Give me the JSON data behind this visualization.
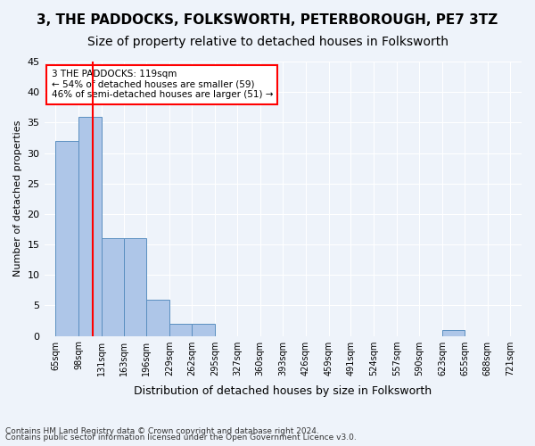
{
  "title1": "3, THE PADDOCKS, FOLKSWORTH, PETERBOROUGH, PE7 3TZ",
  "title2": "Size of property relative to detached houses in Folksworth",
  "xlabel": "Distribution of detached houses by size in Folksworth",
  "ylabel": "Number of detached properties",
  "bin_edges": [
    65,
    98,
    131,
    163,
    196,
    229,
    262,
    295,
    327,
    360,
    393,
    426,
    459,
    491,
    524,
    557,
    590,
    623,
    655,
    688,
    721
  ],
  "bin_labels": [
    "65sqm",
    "98sqm",
    "131sqm",
    "163sqm",
    "196sqm",
    "229sqm",
    "262sqm",
    "295sqm",
    "327sqm",
    "360sqm",
    "393sqm",
    "426sqm",
    "459sqm",
    "491sqm",
    "524sqm",
    "557sqm",
    "590sqm",
    "623sqm",
    "655sqm",
    "688sqm",
    "721sqm"
  ],
  "bar_values": [
    32,
    36,
    16,
    16,
    6,
    2,
    2,
    0,
    0,
    0,
    0,
    0,
    0,
    0,
    0,
    0,
    0,
    1,
    0,
    0
  ],
  "bar_color": "#aec6e8",
  "bar_edge_color": "#5a8fc0",
  "property_size": 119,
  "annotation_line1": "3 THE PADDOCKS: 119sqm",
  "annotation_line2": "← 54% of detached houses are smaller (59)",
  "annotation_line3": "46% of semi-detached houses are larger (51) →",
  "annotation_box_color": "white",
  "annotation_box_edge": "red",
  "ylim": [
    0,
    45
  ],
  "yticks": [
    0,
    5,
    10,
    15,
    20,
    25,
    30,
    35,
    40,
    45
  ],
  "footer1": "Contains HM Land Registry data © Crown copyright and database right 2024.",
  "footer2": "Contains public sector information licensed under the Open Government Licence v3.0.",
  "bg_color": "#eef3fa",
  "grid_color": "#ffffff",
  "title1_fontsize": 11,
  "title2_fontsize": 10
}
